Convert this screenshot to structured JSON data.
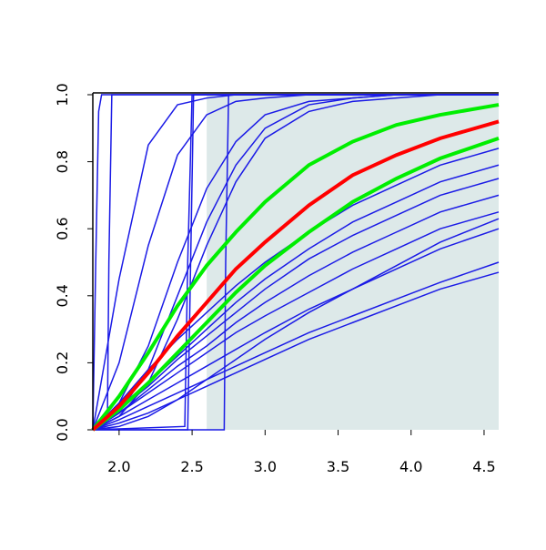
{
  "chart_data": {
    "type": "line",
    "xlim": [
      1.82,
      4.6
    ],
    "ylim": [
      0,
      1
    ],
    "xticks": [
      {
        "value": 2,
        "label": "2.0"
      },
      2.5,
      {
        "value": 3,
        "label": "3.0"
      },
      3.5,
      {
        "value": 4,
        "label": "4.0"
      },
      4.5
    ],
    "yticks": [
      {
        "value": 0,
        "label": "0.0"
      },
      0.2,
      0.4,
      0.6,
      0.8,
      {
        "value": 1,
        "label": "1.0"
      }
    ],
    "shade": {
      "x": [
        2.6,
        4.6
      ],
      "color": "#dde9e9"
    },
    "x": [
      1.82,
      2.0,
      2.2,
      2.4,
      2.6,
      2.8,
      3.0,
      3.3,
      3.6,
      3.9,
      4.2,
      4.6
    ],
    "series": [
      {
        "color": "#1a1ae6",
        "values": [
          0,
          0.03,
          0.07,
          0.11,
          0.15,
          0.19,
          0.23,
          0.29,
          0.34,
          0.39,
          0.44,
          0.5
        ]
      },
      {
        "color": "#1a1ae6",
        "values": [
          0,
          0.02,
          0.05,
          0.09,
          0.13,
          0.17,
          0.21,
          0.27,
          0.32,
          0.37,
          0.42,
          0.47
        ]
      },
      {
        "color": "#1a1ae6",
        "values": [
          0,
          0.04,
          0.09,
          0.14,
          0.19,
          0.24,
          0.29,
          0.36,
          0.42,
          0.48,
          0.54,
          0.6
        ]
      },
      {
        "color": "#1a1ae6",
        "values": [
          0,
          0.05,
          0.11,
          0.17,
          0.23,
          0.29,
          0.34,
          0.41,
          0.48,
          0.54,
          0.6,
          0.65
        ]
      },
      {
        "color": "#1a1ae6",
        "values": [
          0,
          0.05,
          0.12,
          0.19,
          0.25,
          0.32,
          0.38,
          0.46,
          0.53,
          0.59,
          0.65,
          0.7
        ]
      },
      {
        "color": "#1a1ae6",
        "values": [
          0,
          0.06,
          0.13,
          0.21,
          0.28,
          0.35,
          0.42,
          0.51,
          0.58,
          0.64,
          0.7,
          0.75
        ]
      },
      {
        "color": "#1a1ae6",
        "values": [
          0,
          0.06,
          0.14,
          0.22,
          0.3,
          0.38,
          0.45,
          0.54,
          0.62,
          0.68,
          0.74,
          0.79
        ]
      },
      {
        "color": "#1a1ae6",
        "values": [
          0,
          0.01,
          0.04,
          0.09,
          0.15,
          0.21,
          0.27,
          0.35,
          0.42,
          0.49,
          0.56,
          0.63
        ]
      },
      {
        "color": "#1a1ae6",
        "values": [
          0,
          0.08,
          0.18,
          0.27,
          0.35,
          0.43,
          0.5,
          0.59,
          0.67,
          0.73,
          0.79,
          0.84
        ]
      },
      {
        "color": "#1a1ae6",
        "values": [
          0,
          0.45,
          0.85,
          0.97,
          0.99,
          1,
          1,
          1,
          1,
          1,
          1,
          1
        ]
      },
      {
        "color": "#1a1ae6",
        "values": [
          0,
          0.2,
          0.55,
          0.82,
          0.94,
          0.98,
          0.99,
          1,
          1,
          1,
          1,
          1
        ]
      },
      {
        "color": "#1a1ae6",
        "values": [
          0,
          0.08,
          0.25,
          0.5,
          0.72,
          0.86,
          0.94,
          0.98,
          0.99,
          1,
          1,
          1
        ]
      },
      {
        "color": "#1a1ae6",
        "values": [
          0,
          0.05,
          0.18,
          0.4,
          0.62,
          0.79,
          0.9,
          0.97,
          0.99,
          1,
          1,
          1
        ]
      },
      {
        "color": "#1a1ae6",
        "values": [
          0,
          0.04,
          0.14,
          0.33,
          0.55,
          0.74,
          0.87,
          0.95,
          0.98,
          0.99,
          1,
          1
        ]
      },
      {
        "color": "#1a1ae6",
        "x": [
          1.82,
          1.84,
          1.86,
          1.88,
          4.6
        ],
        "values": [
          0,
          0.5,
          0.95,
          1,
          1
        ]
      },
      {
        "color": "#1a1ae6",
        "x": [
          1.82,
          1.92,
          1.93,
          1.95,
          4.6
        ],
        "values": [
          0,
          0.03,
          0.5,
          1,
          1
        ]
      },
      {
        "color": "#1a1ae6",
        "x": [
          1.82,
          2.45,
          2.47,
          2.5,
          4.6
        ],
        "values": [
          0,
          0.01,
          0.5,
          1,
          1
        ]
      },
      {
        "color": "#1a1ae6",
        "x": [
          1.82,
          2.47,
          2.49,
          2.51,
          4.6
        ],
        "values": [
          0,
          0,
          0.5,
          1,
          1
        ]
      },
      {
        "color": "#1a1ae6",
        "x": [
          1.82,
          2.72,
          2.73,
          2.75,
          4.6
        ],
        "values": [
          0,
          0,
          0.5,
          1,
          1
        ]
      },
      {
        "color": "#00ee00",
        "width": 4,
        "values": [
          0,
          0.1,
          0.23,
          0.37,
          0.49,
          0.59,
          0.68,
          0.79,
          0.86,
          0.91,
          0.94,
          0.97
        ]
      },
      {
        "color": "#00ee00",
        "width": 4,
        "values": [
          0,
          0.06,
          0.14,
          0.23,
          0.32,
          0.41,
          0.49,
          0.59,
          0.68,
          0.75,
          0.81,
          0.87
        ]
      },
      {
        "color": "#ff0000",
        "width": 4,
        "values": [
          0,
          0.07,
          0.17,
          0.28,
          0.38,
          0.48,
          0.56,
          0.67,
          0.76,
          0.82,
          0.87,
          0.92
        ]
      }
    ]
  }
}
